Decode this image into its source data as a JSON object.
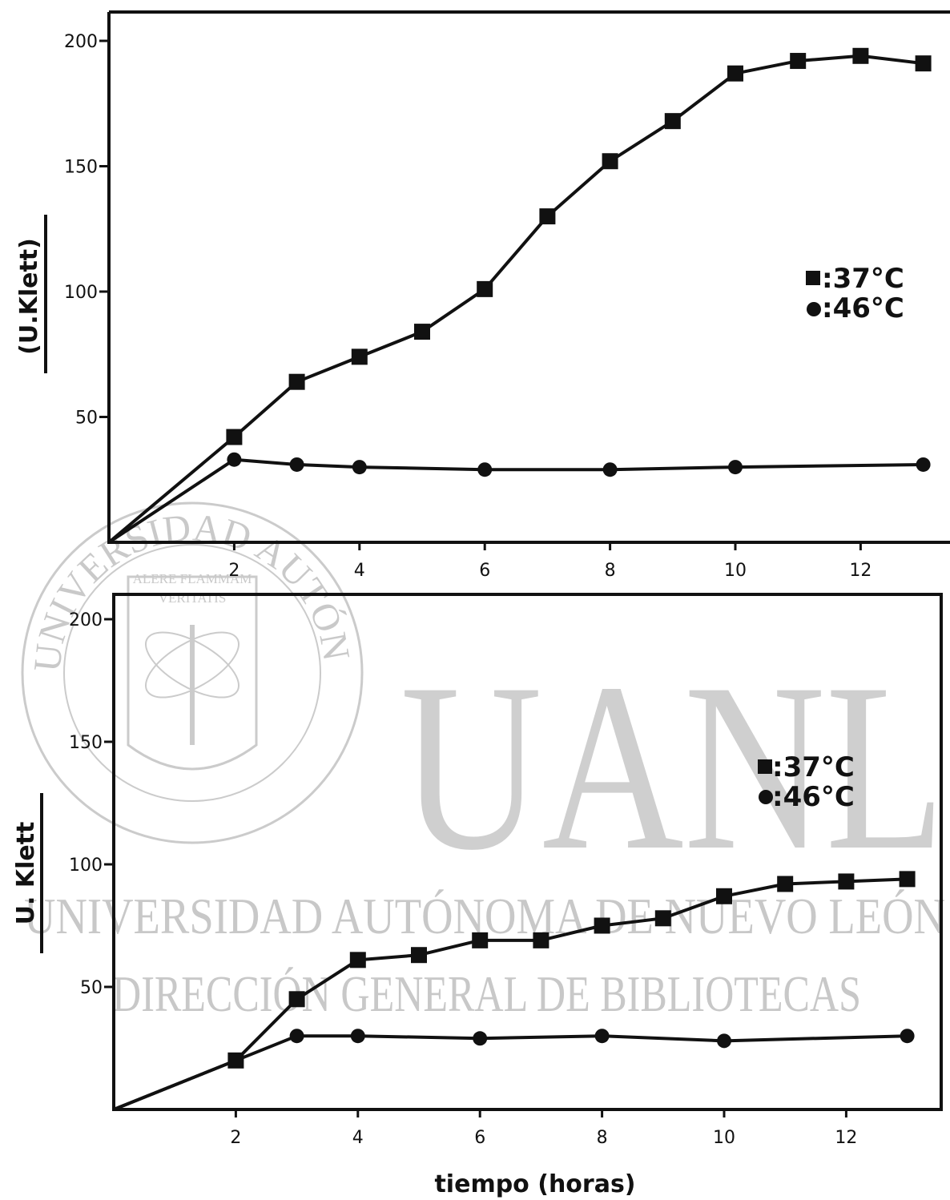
{
  "watermark": {
    "logo_text": "UANL",
    "university": "UNIVERSIDAD AUTÓNOMA DE NUEVO LEÓN",
    "department": "DIRECCIÓN GENERAL DE BIBLIOTECAS",
    "seal_ring_text": "UNIVERSIDAD AUTÓNOMA DE NUEVO LEÓN",
    "seal_motto_1": "ALERE FLAMMAM",
    "seal_motto_2": "VERITATIS"
  },
  "xlabel": "tiempo   (horas)",
  "chart_data": [
    {
      "type": "line",
      "xlabel": "",
      "ylabel": "(U.Klett)",
      "xlim": [
        0,
        13.6
      ],
      "ylim": [
        0,
        210
      ],
      "xticks": [
        2,
        4,
        6,
        8,
        10,
        12
      ],
      "yticks": [
        50,
        100,
        150,
        200
      ],
      "series": [
        {
          "name": ":37°C",
          "marker": "square",
          "x": [
            0,
            2,
            3,
            4,
            5,
            6,
            7,
            8,
            9,
            10,
            11,
            12,
            13
          ],
          "y": [
            0,
            42,
            64,
            74,
            84,
            101,
            130,
            152,
            168,
            187,
            192,
            194,
            191
          ]
        },
        {
          "name": ":46°C",
          "marker": "circle",
          "x": [
            0,
            2,
            3,
            4,
            6,
            8,
            10,
            13
          ],
          "y": [
            0,
            33,
            31,
            30,
            29,
            29,
            30,
            31
          ]
        }
      ]
    },
    {
      "type": "line",
      "xlabel": "tiempo   (horas)",
      "ylabel": "U. Klett",
      "xlim": [
        0,
        13.6
      ],
      "ylim": [
        0,
        210
      ],
      "xticks": [
        2,
        4,
        6,
        8,
        10,
        12
      ],
      "yticks": [
        50,
        100,
        150,
        200
      ],
      "series": [
        {
          "name": ":37°C",
          "marker": "square",
          "x": [
            0,
            2,
            3,
            4,
            5,
            6,
            7,
            8,
            9,
            10,
            11,
            12,
            13
          ],
          "y": [
            0,
            20,
            45,
            61,
            63,
            69,
            69,
            75,
            78,
            87,
            92,
            93,
            94
          ]
        },
        {
          "name": ":46°C",
          "marker": "circle",
          "x": [
            0,
            2,
            3,
            4,
            6,
            8,
            10,
            13
          ],
          "y": [
            0,
            20,
            30,
            30,
            29,
            30,
            28,
            30
          ]
        }
      ]
    }
  ]
}
